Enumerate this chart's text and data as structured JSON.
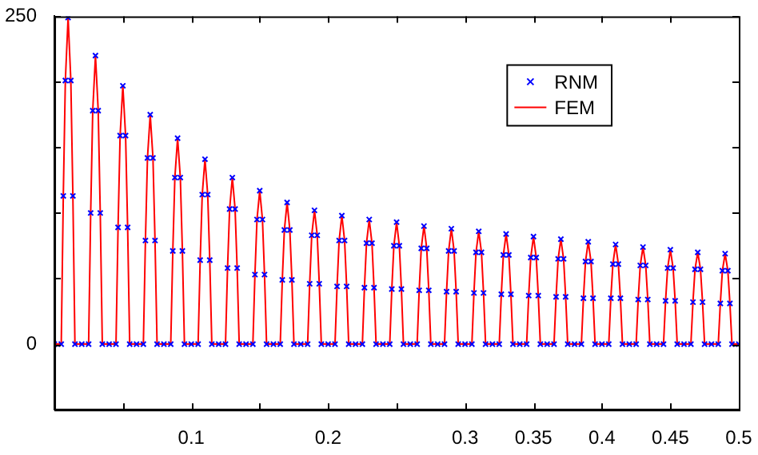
{
  "chart_data": {
    "type": "line",
    "x": [
      0,
      0.005,
      0.0065,
      0.008,
      0.01,
      0.012,
      0.0135,
      0.015,
      0.02,
      0.025,
      0.0265,
      0.028,
      0.03,
      0.032,
      0.0335,
      0.035,
      0.04,
      0.045,
      0.0465,
      0.048,
      0.05,
      0.052,
      0.0535,
      0.055,
      0.06,
      0.065,
      0.0665,
      0.068,
      0.07,
      0.072,
      0.0735,
      0.075,
      0.08,
      0.085,
      0.0865,
      0.088,
      0.09,
      0.092,
      0.0935,
      0.095,
      0.1,
      0.105,
      0.1065,
      0.108,
      0.11,
      0.112,
      0.1135,
      0.115,
      0.12,
      0.125,
      0.1265,
      0.128,
      0.13,
      0.132,
      0.1335,
      0.135,
      0.14,
      0.145,
      0.1465,
      0.148,
      0.15,
      0.152,
      0.1535,
      0.155,
      0.16,
      0.165,
      0.1665,
      0.168,
      0.17,
      0.172,
      0.1735,
      0.175,
      0.18,
      0.185,
      0.1865,
      0.188,
      0.19,
      0.192,
      0.1935,
      0.195,
      0.2,
      0.205,
      0.2065,
      0.208,
      0.21,
      0.212,
      0.2135,
      0.215,
      0.22,
      0.225,
      0.2265,
      0.228,
      0.23,
      0.232,
      0.2335,
      0.235,
      0.24,
      0.245,
      0.2465,
      0.248,
      0.25,
      0.252,
      0.2535,
      0.255,
      0.26,
      0.265,
      0.2665,
      0.268,
      0.27,
      0.272,
      0.2735,
      0.275,
      0.28,
      0.285,
      0.2865,
      0.288,
      0.29,
      0.292,
      0.2935,
      0.295,
      0.3,
      0.305,
      0.3065,
      0.308,
      0.31,
      0.312,
      0.3135,
      0.315,
      0.32,
      0.325,
      0.3265,
      0.328,
      0.33,
      0.332,
      0.3335,
      0.335,
      0.34,
      0.345,
      0.3465,
      0.348,
      0.35,
      0.352,
      0.3535,
      0.355,
      0.36,
      0.365,
      0.3665,
      0.368,
      0.37,
      0.372,
      0.3735,
      0.375,
      0.38,
      0.385,
      0.3865,
      0.388,
      0.39,
      0.392,
      0.3935,
      0.395,
      0.4,
      0.405,
      0.4065,
      0.408,
      0.41,
      0.412,
      0.4135,
      0.415,
      0.42,
      0.425,
      0.4265,
      0.428,
      0.43,
      0.432,
      0.4335,
      0.435,
      0.44,
      0.445,
      0.4465,
      0.448,
      0.45,
      0.452,
      0.4535,
      0.455,
      0.46,
      0.465,
      0.4665,
      0.468,
      0.47,
      0.472,
      0.4735,
      0.475,
      0.48,
      0.485,
      0.4865,
      0.488,
      0.49,
      0.492,
      0.4935,
      0.495,
      0.5
    ],
    "series": [
      {
        "name": "RNM",
        "type": "scatter",
        "marker": "cross",
        "color": "#0000ff",
        "values": [
          0,
          0,
          113,
          201,
          249,
          201,
          113,
          0,
          0,
          0,
          100,
          178,
          220,
          178,
          100,
          0,
          0,
          0,
          89,
          159,
          197,
          159,
          89,
          0,
          0,
          0,
          79,
          142,
          175,
          142,
          79,
          0,
          0,
          0,
          71,
          127,
          157,
          127,
          71,
          0,
          0,
          0,
          64,
          114,
          141,
          114,
          64,
          0,
          0,
          0,
          58,
          103,
          127,
          103,
          58,
          0,
          0,
          0,
          53,
          95,
          117,
          95,
          53,
          0,
          0,
          0,
          49,
          87,
          108,
          87,
          49,
          0,
          0,
          0,
          46,
          83,
          102,
          83,
          46,
          0,
          0,
          0,
          44,
          79,
          98,
          79,
          44,
          0,
          0,
          0,
          43,
          77,
          95,
          77,
          43,
          0,
          0,
          0,
          42,
          75,
          93,
          75,
          42,
          0,
          0,
          0,
          41,
          73,
          90,
          73,
          41,
          0,
          0,
          0,
          40,
          71,
          88,
          71,
          40,
          0,
          0,
          0,
          39,
          70,
          86,
          70,
          39,
          0,
          0,
          0,
          38,
          68,
          84,
          68,
          38,
          0,
          0,
          0,
          37,
          66,
          82,
          66,
          37,
          0,
          0,
          0,
          36,
          65,
          80,
          65,
          36,
          0,
          0,
          0,
          35,
          63,
          78,
          63,
          35,
          0,
          0,
          0,
          35,
          61,
          76,
          61,
          35,
          0,
          0,
          0,
          34,
          60,
          74,
          60,
          34,
          0,
          0,
          0,
          33,
          58,
          72,
          58,
          33,
          0,
          0,
          0,
          32,
          57,
          70,
          57,
          32,
          0,
          0,
          0,
          31,
          56,
          69,
          56,
          31,
          0,
          0
        ]
      },
      {
        "name": "FEM",
        "type": "line",
        "color": "#ff0000",
        "values": [
          0,
          0,
          113,
          201,
          249,
          201,
          113,
          0,
          0,
          0,
          100,
          178,
          220,
          178,
          100,
          0,
          0,
          0,
          89,
          159,
          197,
          159,
          89,
          0,
          0,
          0,
          79,
          142,
          175,
          142,
          79,
          0,
          0,
          0,
          71,
          127,
          157,
          127,
          71,
          0,
          0,
          0,
          64,
          114,
          141,
          114,
          64,
          0,
          0,
          0,
          58,
          103,
          127,
          103,
          58,
          0,
          0,
          0,
          53,
          95,
          117,
          95,
          53,
          0,
          0,
          0,
          49,
          87,
          108,
          87,
          49,
          0,
          0,
          0,
          46,
          83,
          102,
          83,
          46,
          0,
          0,
          0,
          44,
          79,
          98,
          79,
          44,
          0,
          0,
          0,
          43,
          77,
          95,
          77,
          43,
          0,
          0,
          0,
          42,
          75,
          93,
          75,
          42,
          0,
          0,
          0,
          41,
          73,
          90,
          73,
          41,
          0,
          0,
          0,
          40,
          71,
          88,
          71,
          40,
          0,
          0,
          0,
          39,
          70,
          86,
          70,
          39,
          0,
          0,
          0,
          38,
          68,
          84,
          68,
          38,
          0,
          0,
          0,
          37,
          66,
          82,
          66,
          37,
          0,
          0,
          0,
          36,
          65,
          80,
          65,
          36,
          0,
          0,
          0,
          35,
          63,
          78,
          63,
          35,
          0,
          0,
          0,
          35,
          61,
          76,
          61,
          35,
          0,
          0,
          0,
          34,
          60,
          74,
          60,
          34,
          0,
          0,
          0,
          33,
          58,
          72,
          58,
          33,
          0,
          0,
          0,
          32,
          57,
          70,
          57,
          32,
          0,
          0,
          0,
          31,
          56,
          69,
          56,
          31,
          0,
          0
        ]
      }
    ],
    "xlim": [
      0,
      0.5
    ],
    "xticks": [
      {
        "value": 0.05,
        "label": null
      },
      0.1,
      {
        "value": 0.15,
        "label": null
      },
      0.2,
      {
        "value": 0.25,
        "label": null
      },
      0.3,
      0.35,
      0.4,
      0.45,
      0.5
    ],
    "ylim": [
      -50,
      250
    ],
    "yticks": [
      0,
      {
        "value": 50,
        "label": null
      },
      {
        "value": 100,
        "label": null
      },
      {
        "value": 150,
        "label": null
      },
      {
        "value": 200,
        "label": null
      },
      250
    ],
    "legend": "top right"
  }
}
